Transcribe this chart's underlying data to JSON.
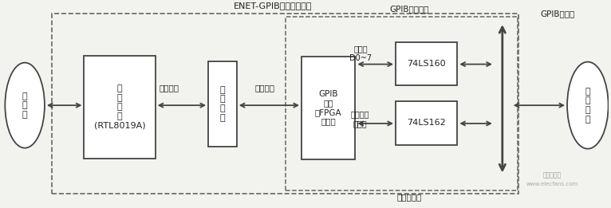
{
  "bg_color": "#f2f2ee",
  "title_main": "ENET-GPIB内部结构模块",
  "title_gpib_ctrl": "GPIB控制接口",
  "title_gpib_bus": "GPIB母线仪",
  "title_bus_trx": "总线收发器",
  "label_ethernet": "以\n太\n网",
  "label_net_interface": "网\n络\n接\n口\n(RTL8019A)",
  "label_ext_bus1": "外部总线",
  "label_cpu": "主\n处\n理\n器",
  "label_ext_bus2": "外部总线",
  "label_gpib_chip": "GPIB\n芯片\n（FPGA\n实现）",
  "label_data_line": "数据线\nD0~7",
  "label_74ls160": "74LS160",
  "label_manage_line": "管理线、\n挂钩线",
  "label_74ls162": "74LS162",
  "label_test_instrument": "测\n试\n仪\n器",
  "watermark_line1": "电子发烧友",
  "watermark_line2": "www.elecfans.com",
  "line_color": "#444444",
  "dash_color": "#666666",
  "text_color": "#222222"
}
